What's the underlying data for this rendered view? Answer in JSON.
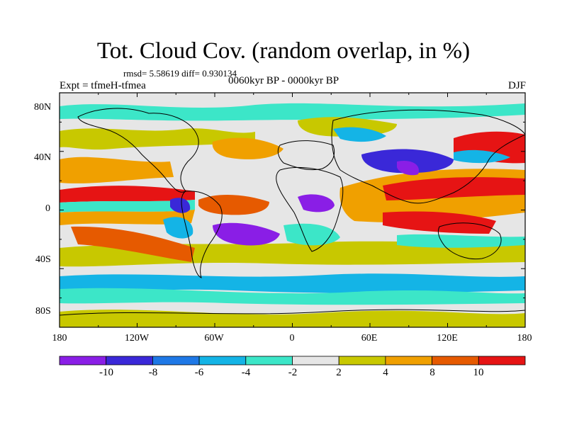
{
  "title": "Tot. Cloud Cov. (random overlap, in %)",
  "stats": "rmsd= 5.58619 diff= 0.930134",
  "experiment": "Expt = tfmeH-tfmea",
  "period": "0060kyr BP - 0000kyr BP",
  "season": "DJF",
  "lat_ticks": [
    "80N",
    "40N",
    "0",
    "40S",
    "80S"
  ],
  "lon_ticks": [
    "180",
    "120W",
    "60W",
    "0",
    "60E",
    "120E",
    "180"
  ],
  "colorbar": {
    "labels": [
      "-10",
      "-8",
      "-6",
      "-4",
      "-2",
      "2",
      "4",
      "8",
      "10"
    ],
    "colors": [
      "#8a1ee6",
      "#3a28d8",
      "#1e78e6",
      "#14b4e6",
      "#3ce6c8",
      "#e6e6e6",
      "#c8c800",
      "#f0a000",
      "#e65a00",
      "#e61414"
    ]
  }
}
